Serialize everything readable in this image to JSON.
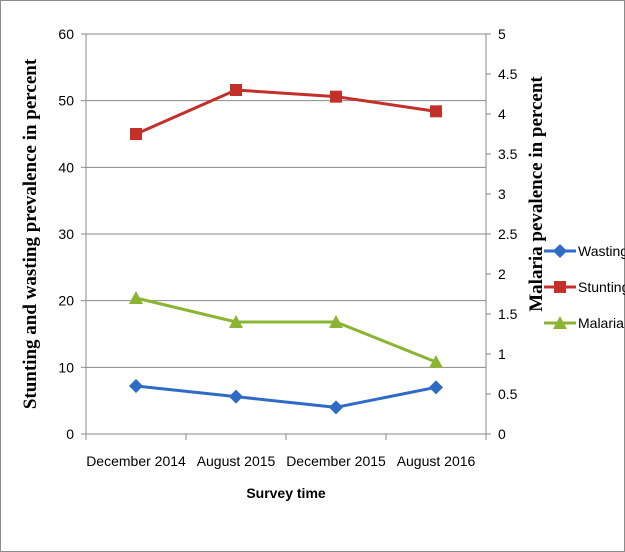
{
  "chart_data": {
    "type": "line",
    "categories": [
      "December 2014",
      "August 2015",
      "December 2015",
      "August 2016"
    ],
    "xlabel": "Survey time",
    "ylabel_left": "Stunting and wasting prevalence in percent",
    "ylabel_right": "Malaria pevalence in percent",
    "ylim_left": [
      0,
      60
    ],
    "yticks_left": [
      0,
      10,
      20,
      30,
      40,
      50,
      60
    ],
    "ylim_right": [
      0,
      5
    ],
    "yticks_right": [
      "0",
      "0.5",
      "1",
      "1.5",
      "2",
      "2.5",
      "3",
      "3.5",
      "4",
      "4.5",
      "5"
    ],
    "grid": "horizontal",
    "legend_position": "right",
    "series": [
      {
        "name": "Wasting",
        "axis": "left",
        "marker": "diamond",
        "color": "#2e6bc6",
        "values": [
          7.2,
          5.6,
          4.0,
          7.0
        ]
      },
      {
        "name": "Stunting",
        "axis": "left",
        "marker": "square",
        "color": "#c3302a",
        "values": [
          45.0,
          51.6,
          50.6,
          48.4
        ]
      },
      {
        "name": "Malaria",
        "axis": "right",
        "marker": "triangle",
        "color": "#8ab532",
        "values": [
          1.7,
          1.4,
          1.4,
          0.9
        ]
      }
    ]
  }
}
